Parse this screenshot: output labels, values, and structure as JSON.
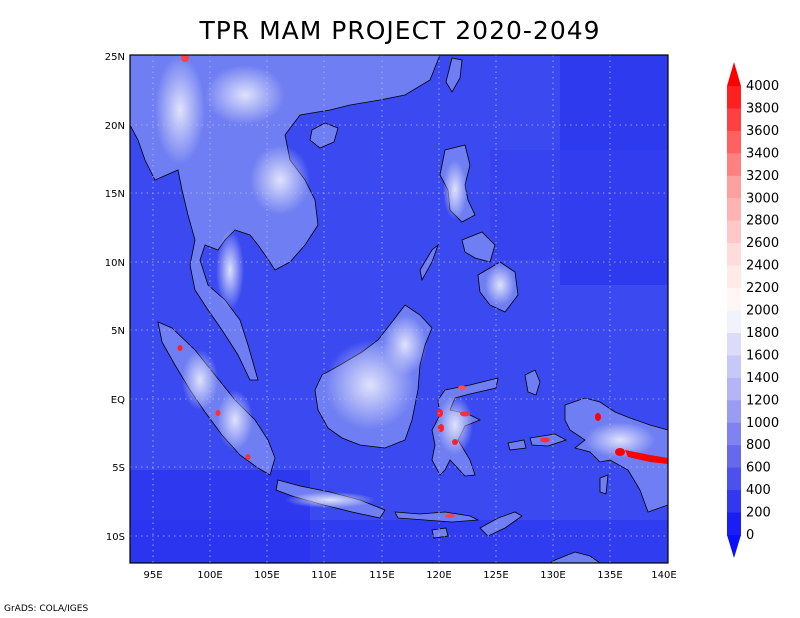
{
  "title": "TPR MAM PROJECT 2020-2049",
  "credit": "GrADS: COLA/IGES",
  "map": {
    "lat_labels": [
      "25N",
      "20N",
      "15N",
      "10N",
      "5N",
      "EQ",
      "5S",
      "10S"
    ],
    "lon_labels": [
      "95E",
      "100E",
      "105E",
      "110E",
      "115E",
      "120E",
      "125E",
      "130E",
      "135E",
      "140E"
    ],
    "ocean_color": "#3a4af0",
    "land_color": "#6f7ef2",
    "highland_color": "#c8ccf8",
    "coastline_color": "#000000",
    "grid": true
  },
  "colorbar": {
    "labels": [
      "4000",
      "3800",
      "3600",
      "3400",
      "3200",
      "3000",
      "2800",
      "2600",
      "2400",
      "2200",
      "2000",
      "1800",
      "1600",
      "1400",
      "1200",
      "1000",
      "800",
      "600",
      "400",
      "200",
      "0"
    ],
    "colors": [
      "#ff0000",
      "#ff2020",
      "#ff4040",
      "#ff6060",
      "#ff8080",
      "#ffa0a0",
      "#ffb4b4",
      "#ffc8c8",
      "#ffdcdc",
      "#ffeaea",
      "#fff6f6",
      "#f2f2fc",
      "#dcdcfa",
      "#c8c8f8",
      "#b4b4f6",
      "#9a9cf2",
      "#8082f0",
      "#6668ee",
      "#4c50ee",
      "#3238f0",
      "#1a1ef4",
      "#0a10f8"
    ]
  }
}
